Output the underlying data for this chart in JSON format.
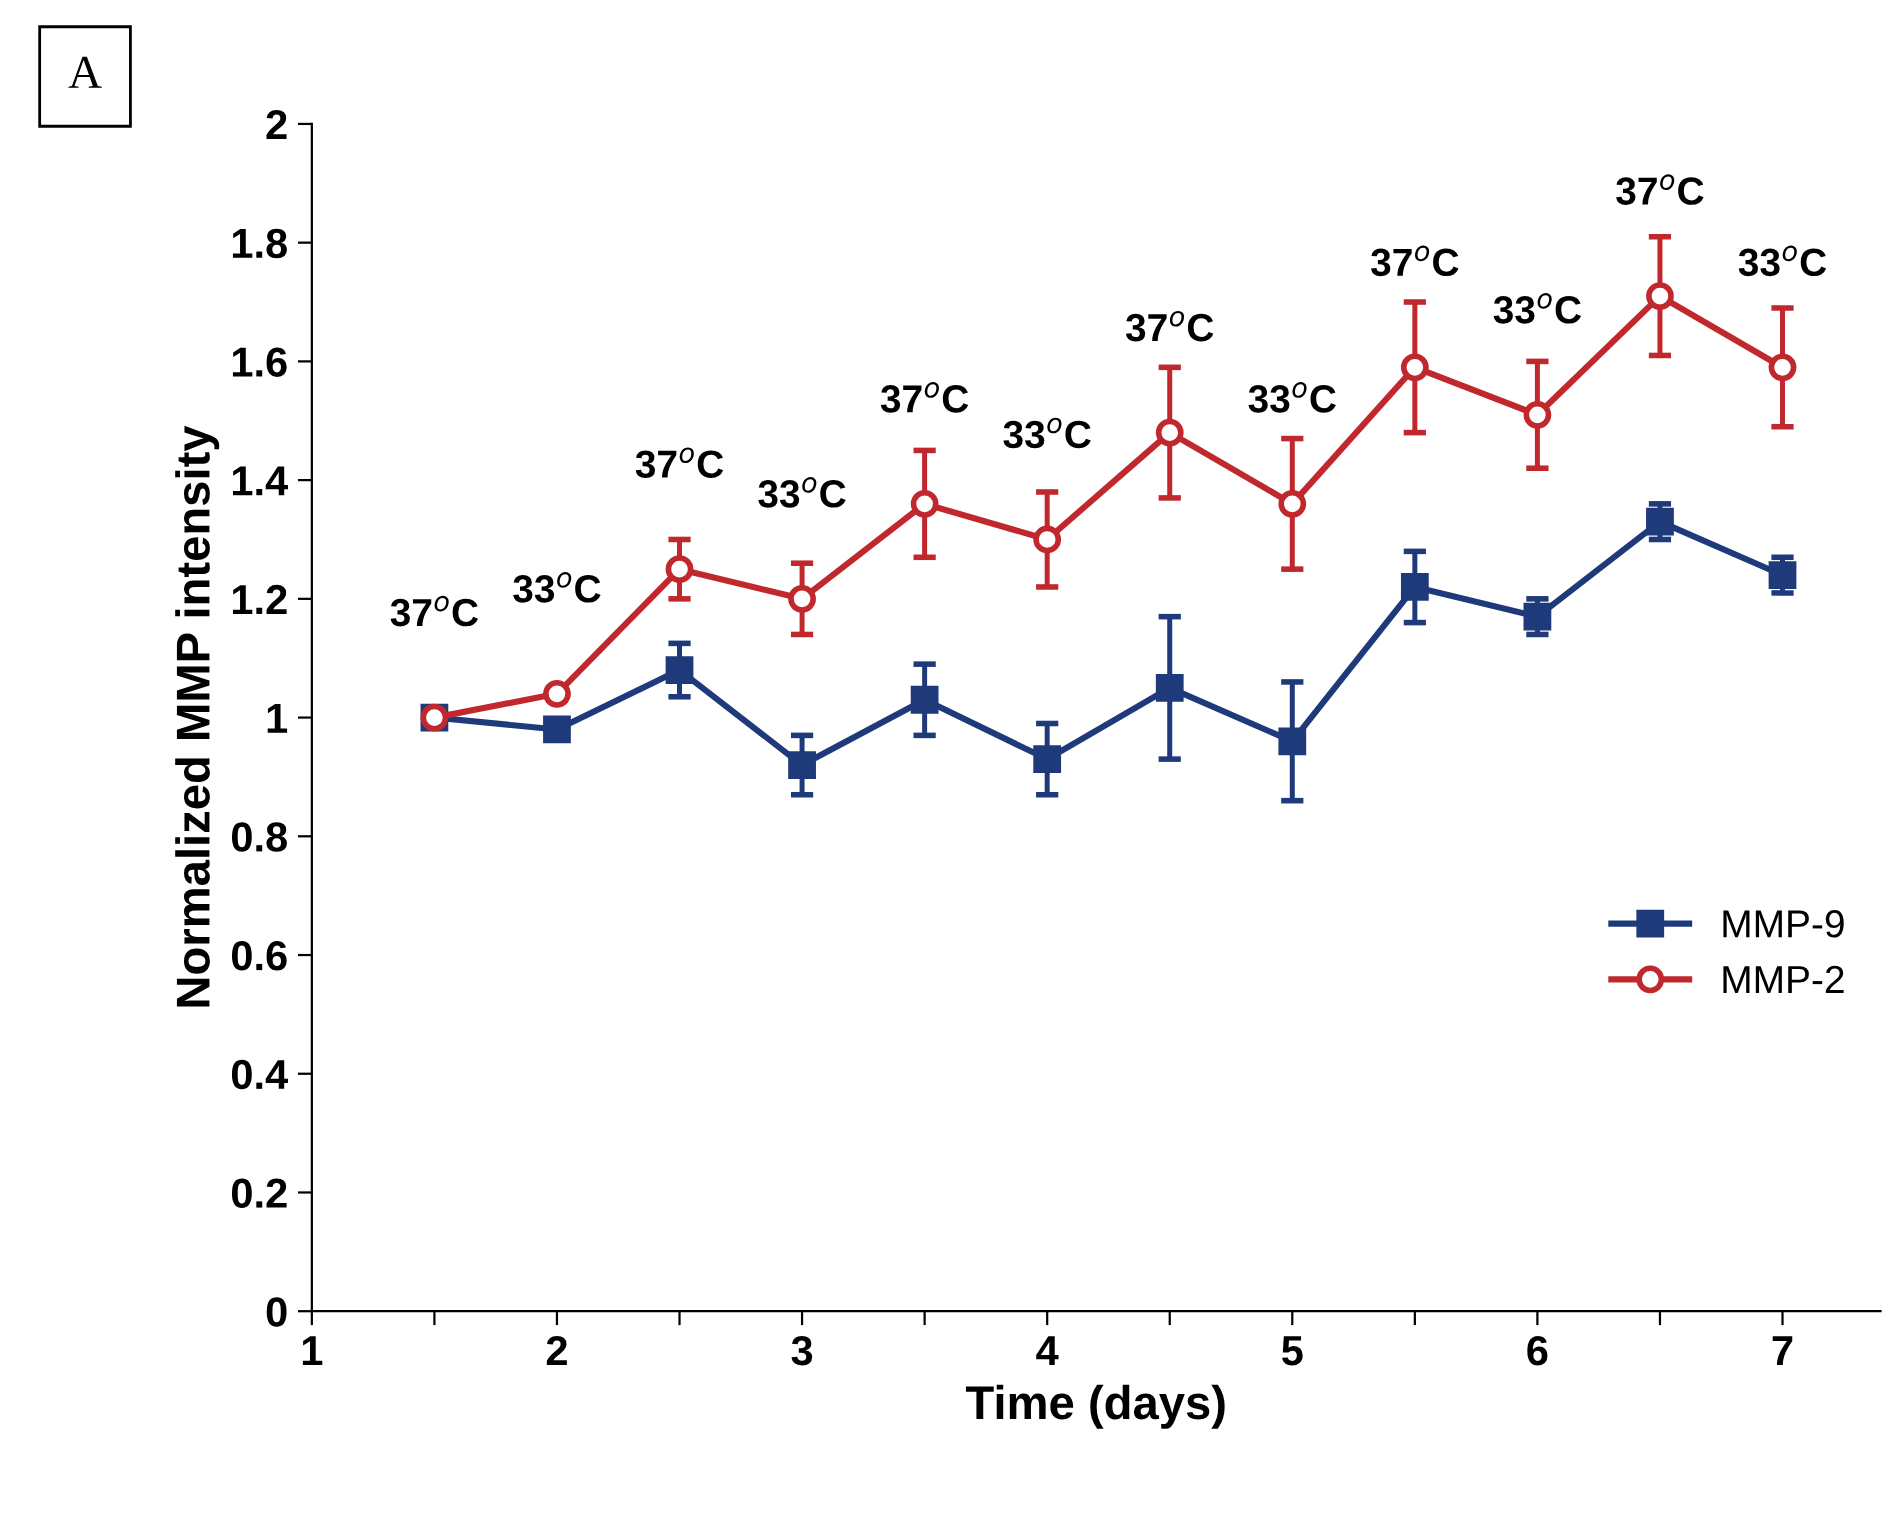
{
  "chart_data": {
    "type": "line",
    "xlabel": "Time (days)",
    "ylabel": "Normalized MMP intensity",
    "x": [
      1.5,
      2,
      2.5,
      3,
      3.5,
      4,
      4.5,
      5,
      5.5,
      6,
      6.5,
      7
    ],
    "series": [
      {
        "name": "MMP-9",
        "color": "#1f3a7a",
        "marker": "square",
        "values": [
          1.0,
          0.98,
          1.08,
          0.92,
          1.03,
          0.93,
          1.05,
          0.96,
          1.22,
          1.17,
          1.33,
          1.24
        ],
        "errors": [
          null,
          0.01,
          0.045,
          0.05,
          0.06,
          0.06,
          0.12,
          0.1,
          0.06,
          0.03,
          0.03,
          0.03
        ]
      },
      {
        "name": "MMP-2",
        "color": "#c0282d",
        "marker": "circle",
        "values": [
          1.0,
          1.04,
          1.25,
          1.2,
          1.36,
          1.3,
          1.48,
          1.36,
          1.59,
          1.51,
          1.71,
          1.59
        ],
        "errors": [
          null,
          0.01,
          0.05,
          0.06,
          0.09,
          0.08,
          0.11,
          0.11,
          0.11,
          0.09,
          0.1,
          0.1
        ]
      }
    ],
    "xlim": [
      1,
      7.4
    ],
    "xticks": [
      1,
      {
        "value": 1.5,
        "label": null
      },
      2,
      {
        "value": 2.5,
        "label": null
      },
      3,
      {
        "value": 3.5,
        "label": null
      },
      4,
      {
        "value": 4.5,
        "label": null
      },
      5,
      {
        "value": 5.5,
        "label": null
      },
      6,
      {
        "value": 6.5,
        "label": null
      },
      7
    ],
    "ylim": [
      0,
      2
    ],
    "yticks": [
      0,
      0.2,
      0.4,
      0.6,
      0.8,
      1,
      1.2,
      1.4,
      1.6,
      1.8,
      2
    ],
    "legend": "right",
    "grid": false,
    "annotations": [
      "A",
      {
        "text": "37$^{o}$C",
        "x": 1.5,
        "y": 1.0
      },
      {
        "text": "33$^{o}$C",
        "x": 2,
        "y": 1.04
      },
      {
        "text": "37$^{o}$C",
        "x": 2.5,
        "y": 1.25
      },
      {
        "text": "33$^{o}$C",
        "x": 3,
        "y": 1.2
      },
      {
        "text": "37$^{o}$C",
        "x": 3.5,
        "y": 1.36
      },
      {
        "text": "33$^{o}$C",
        "x": 4,
        "y": 1.3
      },
      {
        "text": "37$^{o}$C",
        "x": 4.5,
        "y": 1.48
      },
      {
        "text": "33$^{o}$C",
        "x": 5,
        "y": 1.36
      },
      {
        "text": "37$^{o}$C",
        "x": 5.5,
        "y": 1.59
      },
      {
        "text": "33$^{o}$C",
        "x": 6,
        "y": 1.51
      },
      {
        "text": "37$^{o}$C",
        "x": 6.5,
        "y": 1.71
      },
      {
        "text": "33$^{o}$C",
        "x": 7,
        "y": 1.59
      }
    ]
  }
}
